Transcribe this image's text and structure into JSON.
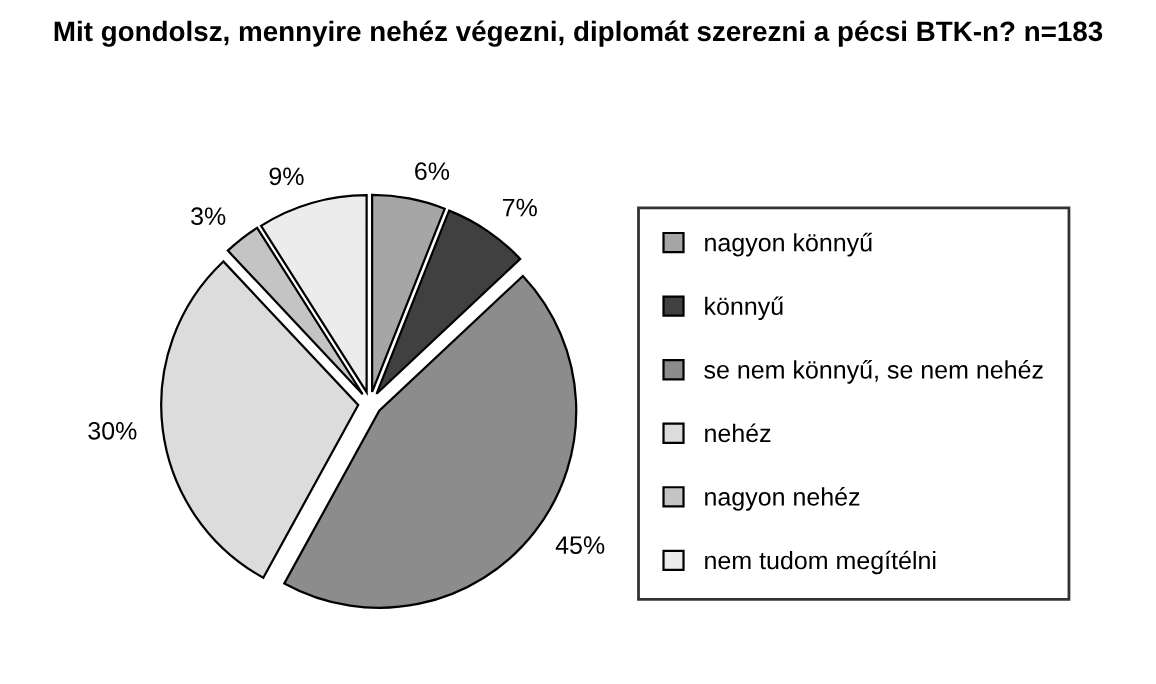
{
  "chart_data": {
    "type": "pie",
    "title": "Mit gondolsz, mennyire nehéz végezni, diplomát szerezni a pécsi BTK-n? n=183",
    "categories": [
      "nagyon könnyű",
      "könnyű",
      "se nem könnyű, se nem nehéz",
      "nehéz",
      "nagyon nehéz",
      "nem tudom megítélni"
    ],
    "values": [
      6,
      7,
      45,
      30,
      3,
      9
    ],
    "value_labels": [
      "6%",
      "7%",
      "45%",
      "30%",
      "3%",
      "9%"
    ],
    "colors": [
      "#a6a6a6",
      "#404040",
      "#8c8c8c",
      "#dcdcdc",
      "#c4c4c4",
      "#ececec"
    ],
    "legend": "right"
  }
}
